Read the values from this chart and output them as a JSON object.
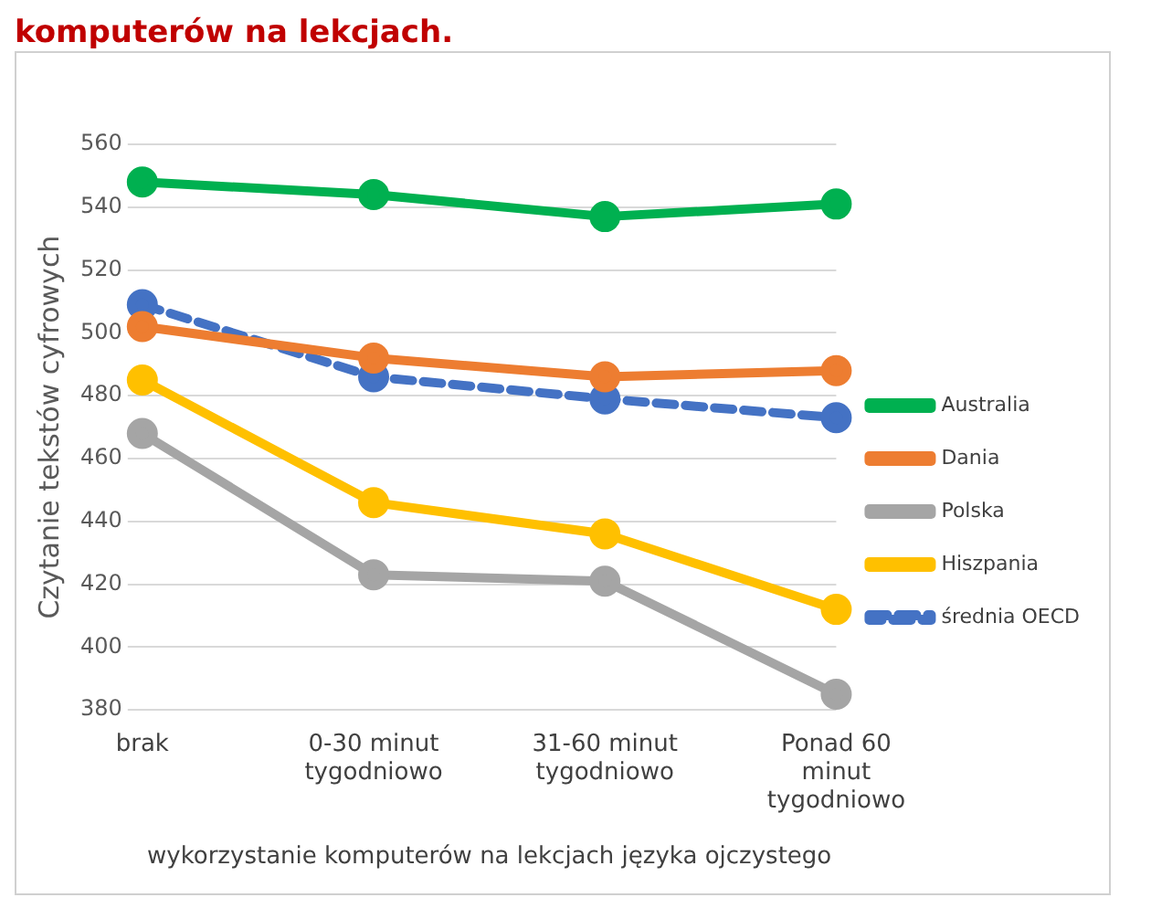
{
  "chart_data": {
    "type": "line",
    "title": "komputerów na lekcjach.",
    "xlabel": "wykorzystanie komputerów na lekcjach języka ojczystego",
    "ylabel": "Czytanie tekstów cyfrowych",
    "categories": [
      "brak",
      "0-30 minut tygodniowo",
      "31-60 minut tygodniowo",
      "Ponad 60 minut tygodniowo"
    ],
    "series": [
      {
        "name": "Australia",
        "color": "#00b050",
        "values": [
          548,
          544,
          537,
          541
        ]
      },
      {
        "name": "Dania",
        "color": "#ed7d31",
        "values": [
          502,
          492,
          486,
          488
        ]
      },
      {
        "name": "Polska",
        "color": "#a5a5a5",
        "values": [
          468,
          423,
          421,
          385
        ]
      },
      {
        "name": "Hiszpania",
        "color": "#ffc000",
        "values": [
          485,
          446,
          436,
          412
        ]
      },
      {
        "name": "średnia OECD",
        "color": "#4472c4",
        "values": [
          509,
          486,
          479,
          473
        ],
        "line_style": "dashed"
      }
    ],
    "ylim": [
      380,
      560
    ],
    "yticks": [
      380,
      400,
      420,
      440,
      460,
      480,
      500,
      520,
      540,
      560
    ],
    "grid": "y",
    "legend": "right",
    "marker": "circle"
  }
}
